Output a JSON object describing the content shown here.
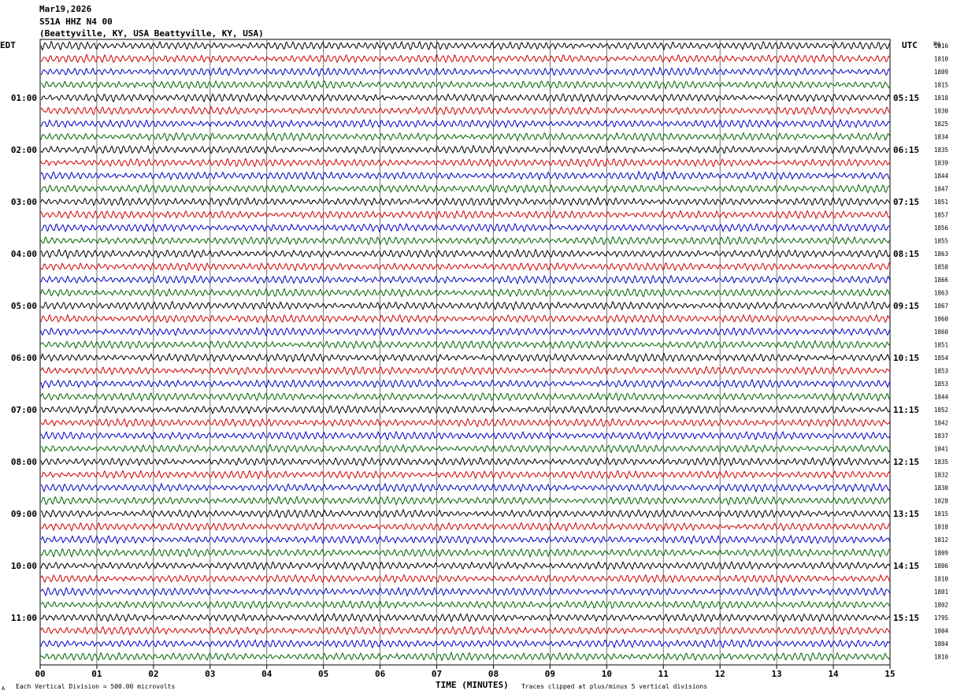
{
  "header": {
    "date": "Mar19,2026",
    "station": "S51A HHZ N4 00",
    "location": "(Beattyville, KY, USA Beattyville, KY, USA)"
  },
  "chart_data": {
    "type": "line",
    "title": "S51A HHZ N4 00",
    "left_axis_title": "EDT",
    "right_axis_title": "UTC",
    "pg_label": "PG",
    "xlabel": "TIME (MINUTES)",
    "xlim": [
      0,
      15
    ],
    "x_ticks": [
      "00",
      "01",
      "02",
      "03",
      "04",
      "05",
      "06",
      "07",
      "08",
      "09",
      "10",
      "11",
      "12",
      "13",
      "14",
      "15"
    ],
    "trace_colors": [
      "#000000",
      "#d00000",
      "#0000c8",
      "#006400"
    ],
    "traces_per_hour": 4,
    "edt_hour_labels": [
      "01:00",
      "02:00",
      "03:00",
      "04:00",
      "05:00",
      "06:00",
      "07:00",
      "08:00",
      "09:00",
      "10:00",
      "11:00"
    ],
    "utc_hour_labels": [
      "05:15",
      "06:15",
      "07:15",
      "08:15",
      "09:15",
      "10:15",
      "11:15",
      "12:15",
      "13:15",
      "14:15",
      "15:15"
    ],
    "first_labeled_trace_index": 4,
    "trace_values": [
      "1816",
      "1810",
      "1809",
      "1815",
      "1818",
      "1830",
      "1825",
      "1834",
      "1835",
      "1839",
      "1844",
      "1847",
      "1851",
      "1857",
      "1856",
      "1855",
      "1863",
      "1858",
      "1866",
      "1863",
      "1867",
      "1860",
      "1860",
      "1851",
      "1854",
      "1853",
      "1853",
      "1844",
      "1852",
      "1842",
      "1837",
      "1841",
      "1835",
      "1832",
      "1830",
      "1828",
      "1815",
      "1818",
      "1812",
      "1809",
      "1806",
      "1810",
      "1801",
      "1802",
      "1795",
      "1804",
      "1804",
      "1810"
    ],
    "vertical_division": "Each Vertical Division =  500.00 microvolts",
    "clip_note": "Traces clipped at plus/minus 5 vertical divisions",
    "corner_mark": "A"
  }
}
